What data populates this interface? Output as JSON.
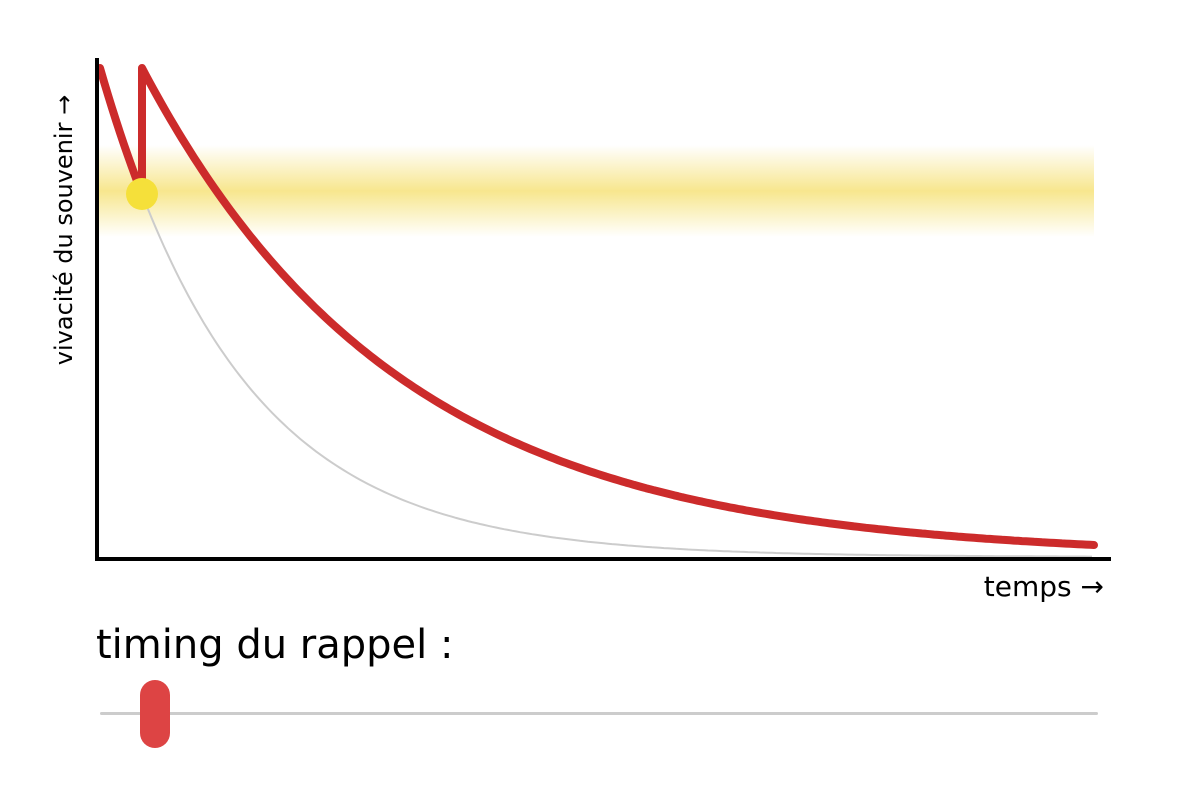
{
  "diagram": {
    "ylabel": "vivacité du souvenir →",
    "xlabel": "temps →",
    "colors": {
      "curve": "#cc2b2b",
      "curve_initial": "#d64545",
      "baseline_curve": "#cccccc",
      "band": "#f6e27a",
      "marker": "#f5e03a",
      "axis": "#000000"
    }
  },
  "slider": {
    "label": "timing du rappel :",
    "value": 0.05,
    "thumb_color": "#dd4444",
    "track_color": "#cccccc"
  }
}
